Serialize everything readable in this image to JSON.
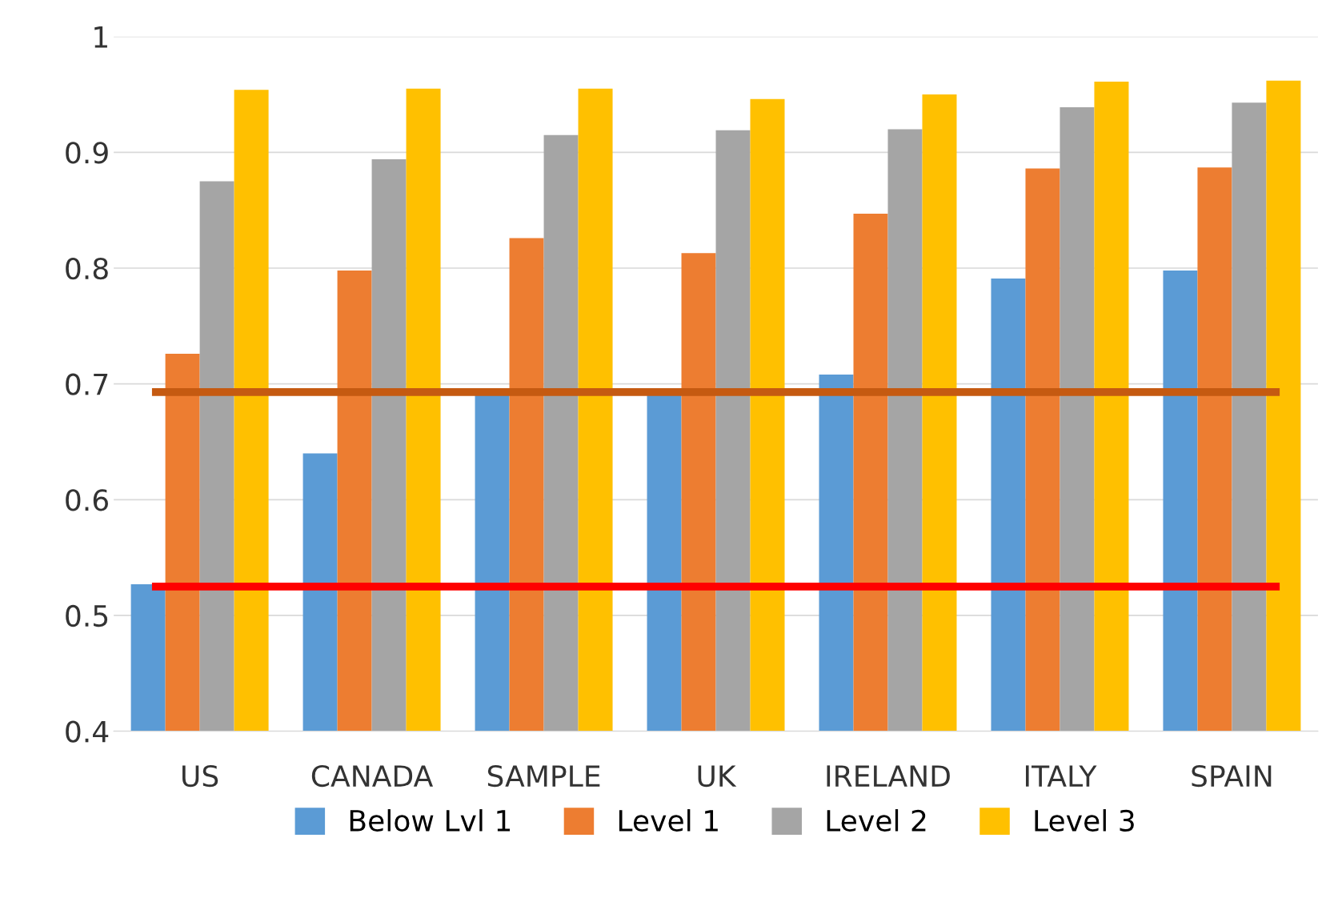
{
  "chart_data": {
    "type": "bar",
    "categories": [
      "US",
      "CANADA",
      "SAMPLE",
      "UK",
      "IRELAND",
      "ITALY",
      "SPAIN"
    ],
    "series": [
      {
        "name": "Below Lvl 1",
        "color": "#5b9bd5",
        "values": [
          0.527,
          0.64,
          0.69,
          0.69,
          0.708,
          0.791,
          0.798
        ]
      },
      {
        "name": "Level 1",
        "color": "#ed7d31",
        "values": [
          0.726,
          0.798,
          0.826,
          0.813,
          0.847,
          0.886,
          0.887
        ]
      },
      {
        "name": "Level 2",
        "color": "#a5a5a5",
        "values": [
          0.875,
          0.894,
          0.915,
          0.919,
          0.92,
          0.939,
          0.943
        ]
      },
      {
        "name": "Level 3",
        "color": "#ffc000",
        "values": [
          0.954,
          0.955,
          0.955,
          0.946,
          0.95,
          0.961,
          0.962
        ]
      }
    ],
    "ylim": [
      0.4,
      1
    ],
    "yticks": [
      0.4,
      0.5,
      0.6,
      0.7,
      0.8,
      0.9,
      1
    ],
    "grid": "y",
    "legend": "bottom",
    "ref_lines": [
      {
        "axis": "y",
        "value": 0.693,
        "color": "#c55a11"
      },
      {
        "axis": "y",
        "value": 0.525,
        "color": "#ff0000"
      }
    ]
  }
}
